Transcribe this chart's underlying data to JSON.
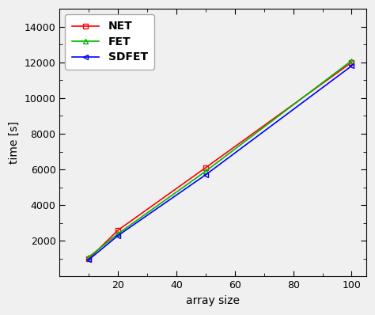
{
  "x": [
    10,
    20,
    50,
    100
  ],
  "NET": [
    1000,
    2600,
    6100,
    12000
  ],
  "FET": [
    1100,
    2400,
    5900,
    12100
  ],
  "SDFET": [
    950,
    2300,
    5700,
    11800
  ],
  "NET_color": "#ff0000",
  "FET_color": "#00bb00",
  "SDFET_color": "#0000ff",
  "xlabel": "array size",
  "ylabel": "time [s]",
  "xlim": [
    0,
    105
  ],
  "ylim": [
    0,
    15000
  ],
  "yticks": [
    2000,
    4000,
    6000,
    8000,
    10000,
    12000,
    14000
  ],
  "xticks": [
    20,
    40,
    60,
    80,
    100
  ],
  "background_color": "#f0f0f0",
  "legend_labels": [
    "NET",
    "FET",
    "SDFET"
  ]
}
